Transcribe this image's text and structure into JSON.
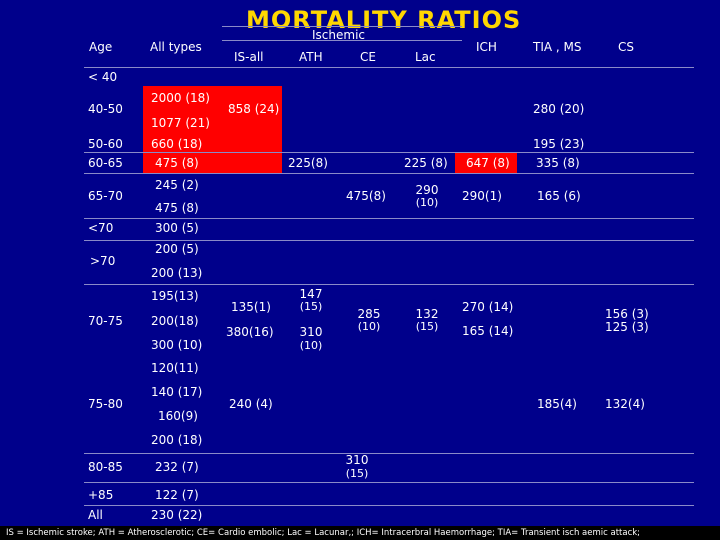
{
  "title": "MORTALITY RATIOS",
  "headers": {
    "ischemic": "Ischemic",
    "age": "Age",
    "all_types": "All types",
    "is_all": "IS-all",
    "ath": "ATH",
    "ce": "CE",
    "lac": "Lac",
    "ich": "ICH",
    "tia_ms": "TIA , MS",
    "cs": "CS"
  },
  "rows": {
    "lt40": {
      "age": "< 40"
    },
    "r40_50": {
      "age": "40-50",
      "all1": "2000 (18)",
      "all2": "1077 (21)",
      "is_all": "858 (24)",
      "tia": "280 (20)"
    },
    "r50_60": {
      "age": "50-60",
      "all": "660 (18)",
      "tia": "195 (23)"
    },
    "r60_65": {
      "age": "60-65",
      "all": "475 (8)",
      "ath": "225(8)",
      "lac": "225 (8)",
      "ich": "647 (8)",
      "tia": "335 (8)"
    },
    "r65_70": {
      "age": "65-70",
      "all1": "245 (2)",
      "all2": "475 (8)",
      "ce": "475(8)",
      "lac1": "290",
      "lac2": "(10)",
      "ich": "290(1)",
      "tia": "165 (6)"
    },
    "lt70": {
      "age": "<70",
      "all": "300 (5)"
    },
    "gt70": {
      "age": ">70",
      "all1": "200 (5)",
      "all2": "200 (13)"
    },
    "r70_75": {
      "age": "70-75",
      "all1": "195(13)",
      "all2": "200(18)",
      "all3": "300 (10)",
      "is1": "135(1)",
      "is2": "380(16)",
      "ath1a": "147",
      "ath1b": "(15)",
      "ath2a": "310",
      "ath2b": "(10)",
      "ce1": "285",
      "ce2": "(10)",
      "lac1": "132",
      "lac2": "(15)",
      "ich1": "270 (14)",
      "ich2": "165 (14)",
      "cs1": "156 (3)",
      "cs2": "125 (3)"
    },
    "r75_80": {
      "age": "75-80",
      "all0": "120(11)",
      "all1": "140 (17)",
      "all2": "160(9)",
      "all3": "200 (18)",
      "is": "240 (4)",
      "tia": "185(4)",
      "cs": "132(4)"
    },
    "r80_85": {
      "age": "80-85",
      "all": "232 (7)",
      "ce1": "310",
      "ce2": "(15)"
    },
    "gt85": {
      "age": "+85",
      "all": "122 (7)"
    },
    "all": {
      "age": "All",
      "all": "230 (22)"
    }
  },
  "footer": "IS = Ischemic stroke; ATH = Atherosclerotic; CE= Cardio embolic; Lac = Lacunar,; ICH= Intracerbral Haemorrhage; TIA= Transient isch aemic attack;",
  "colors": {
    "background": "#00008B",
    "highlight": "#FF0000",
    "title": "#FFD700"
  }
}
